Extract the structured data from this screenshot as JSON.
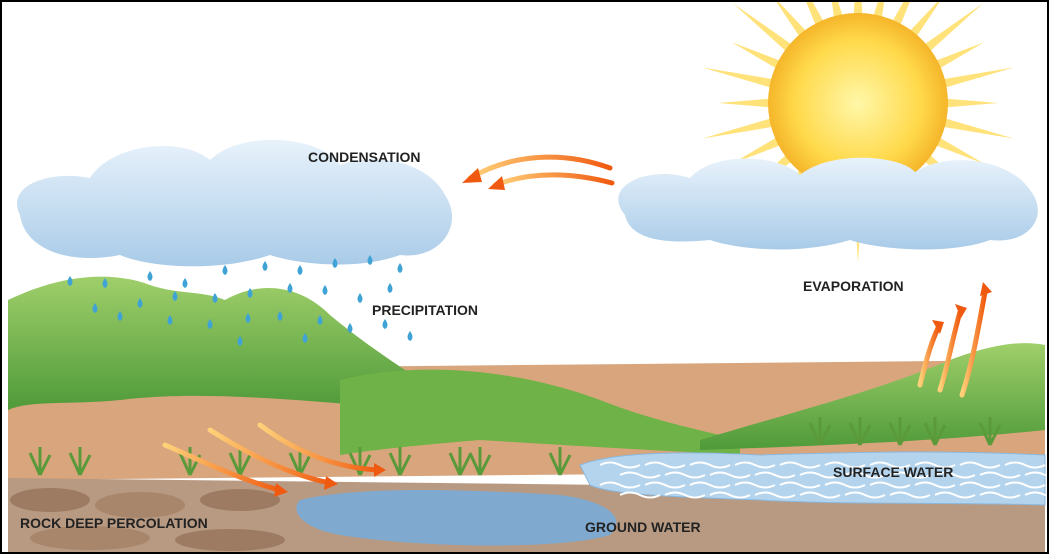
{
  "diagram": {
    "labels": [
      "CONDENSATION",
      "PRECIPITATION",
      "EVAPORATION",
      "SURFACE WATER",
      "ROCK DEEP PERCOLATION",
      "GROUND WATER"
    ]
  }
}
